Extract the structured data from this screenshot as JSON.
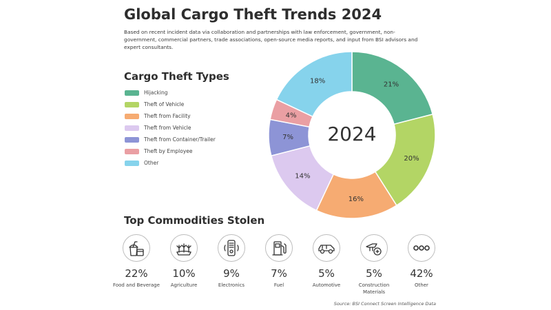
{
  "title": "Global Cargo Theft Trends 2024",
  "subtitle": "Based on recent incident data via collaboration and partnerships with law enforcement, government, non-government, commercial partners, trade associations, open-source media reports, and input from BSI advisors and expert consultants.",
  "legend_title": "Cargo Theft Types",
  "center_label": "2024",
  "commodities_title": "Top Commodities Stolen",
  "source": "Source: BSI Connect Screen Intelligence Data",
  "chart_data": [
    {
      "type": "pie",
      "donut": true,
      "categories": [
        "Hijacking",
        "Theft of Vehicle",
        "Theft from Facility",
        "Theft from Vehicle",
        "Theft from Container/Trailer",
        "Theft by Employee",
        "Other"
      ],
      "values": [
        21,
        20,
        16,
        14,
        7,
        4,
        18
      ],
      "labels": [
        "21%",
        "20%",
        "16%",
        "14%",
        "7%",
        "4%",
        "18%"
      ],
      "colors": [
        "#5ab491",
        "#b3d565",
        "#f6ab72",
        "#dcc9ef",
        "#8d94d6",
        "#ea9fa3",
        "#86d3ec"
      ],
      "legend_position": "left"
    },
    {
      "type": "table",
      "items": [
        {
          "value": "22%",
          "label": "Food and Beverage",
          "icon": "food-and-beverage-icon"
        },
        {
          "value": "10%",
          "label": "Agriculture",
          "icon": "agriculture-icon"
        },
        {
          "value": "9%",
          "label": "Electronics",
          "icon": "electronics-icon"
        },
        {
          "value": "7%",
          "label": "Fuel",
          "icon": "fuel-icon"
        },
        {
          "value": "5%",
          "label": "Automotive",
          "icon": "automotive-icon"
        },
        {
          "value": "5%",
          "label": "Construction Materials",
          "icon": "construction-materials-icon"
        },
        {
          "value": "42%",
          "label": "Other",
          "icon": "other-icon"
        }
      ]
    }
  ]
}
